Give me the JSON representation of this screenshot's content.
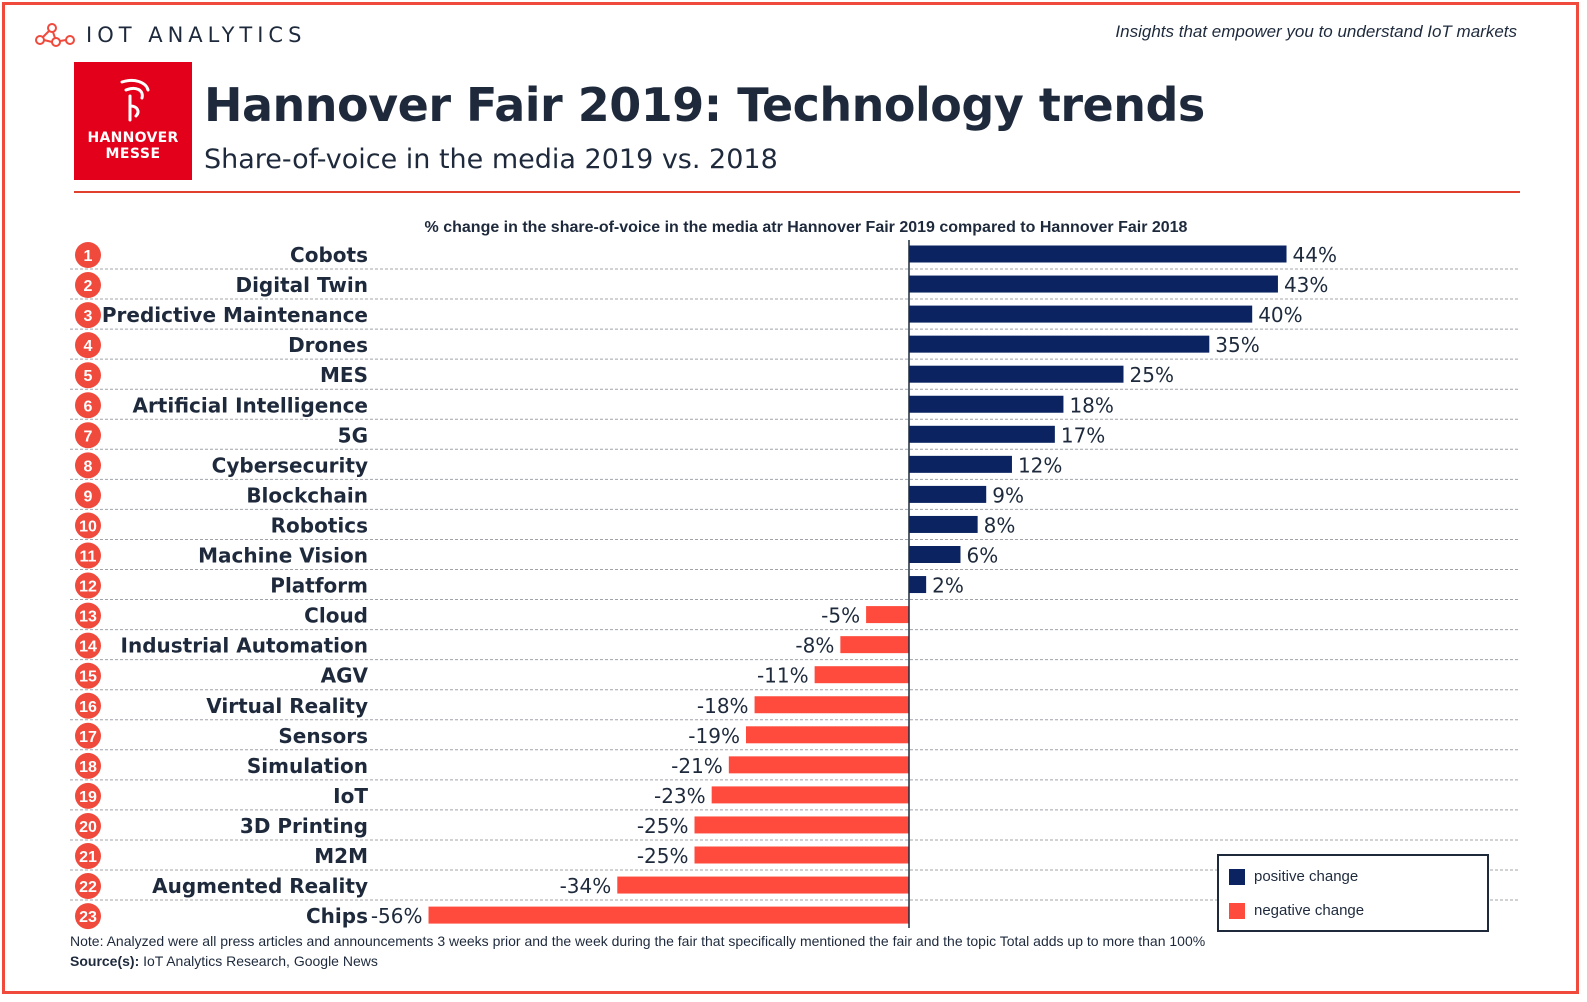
{
  "header": {
    "brand": "IOT ANALYTICS",
    "tagline": "Insights that empower you to understand IoT markets"
  },
  "logo": {
    "line1": "HANNOVER",
    "line2": "MESSE"
  },
  "title": "Hannover Fair 2019: Technology trends",
  "subtitle": "Share-of-voice in the media 2019 vs. 2018",
  "colors": {
    "positive": "#0b2361",
    "negative": "#ff4b3e",
    "accent": "#e2001a",
    "text": "#1e2a3c"
  },
  "chart_data": {
    "type": "bar",
    "orientation": "horizontal",
    "title": "% change in the share-of-voice in the media atr Hannover Fair 2019 compared to Hannover Fair 2018",
    "ranks": [
      1,
      2,
      3,
      4,
      5,
      6,
      7,
      8,
      9,
      10,
      11,
      12,
      13,
      14,
      15,
      16,
      17,
      18,
      19,
      20,
      21,
      22,
      23
    ],
    "categories": [
      "Cobots",
      "Digital Twin",
      "Predictive Maintenance",
      "Drones",
      "MES",
      "Artificial Intelligence",
      "5G",
      "Cybersecurity",
      "Blockchain",
      "Robotics",
      "Machine Vision",
      "Platform",
      "Cloud",
      "Industrial Automation",
      "AGV",
      "Virtual Reality",
      "Sensors",
      "Simulation",
      "IoT",
      "3D Printing",
      "M2M",
      "Augmented Reality",
      "Chips"
    ],
    "values": [
      44,
      43,
      40,
      35,
      25,
      18,
      17,
      12,
      9,
      8,
      6,
      2,
      -5,
      -8,
      -11,
      -18,
      -19,
      -21,
      -23,
      -25,
      -25,
      -34,
      -56
    ],
    "value_labels": [
      "44%",
      "43%",
      "40%",
      "35%",
      "25%",
      "18%",
      "17%",
      "12%",
      "9%",
      "8%",
      "6%",
      "2%",
      "-5%",
      "-8%",
      "-11%",
      "-18%",
      "-19%",
      "-21%",
      "-23%",
      "-25%",
      "-25%",
      "-34%",
      "-56%"
    ],
    "grid": true
  },
  "legend": {
    "positive_label": "positive change",
    "negative_label": "negative change"
  },
  "footer": {
    "note": "Note: Analyzed were all press articles and announcements 3 weeks prior and the week during the fair that specifically mentioned the fair and the topic  Total adds up to more than 100%",
    "source_label": "Source(s):",
    "source_text": " IoT Analytics Research, Google News"
  }
}
